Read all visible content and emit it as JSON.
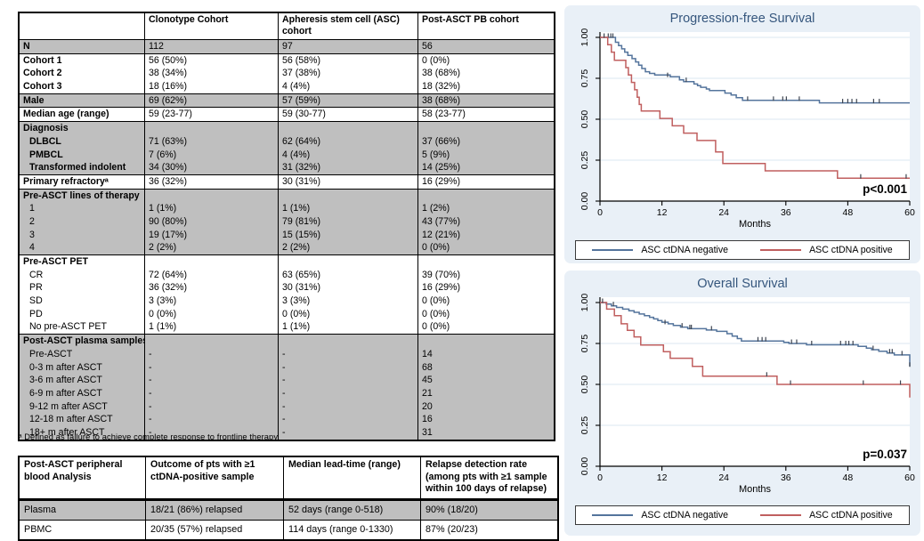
{
  "colors": {
    "table_shade": "#bfbfbf",
    "panel_bg": "#e9f0f7",
    "grid": "#dbe7f1",
    "axis": "#000000",
    "title": "#35567d",
    "censor_tick": "#3d4450",
    "negative": "#54749c",
    "positive": "#c05f5f"
  },
  "tables": {
    "characteristics": {
      "columns": [
        "",
        "Clonotype Cohort",
        "Apheresis stem cell (ASC) cohort",
        "Post-ASCT PB cohort"
      ],
      "blocks": [
        {
          "shaded": true,
          "lines": [
            {
              "label": "N",
              "bold": true,
              "values": [
                "112",
                "97",
                "56"
              ]
            }
          ]
        },
        {
          "shaded": false,
          "lines": [
            {
              "label": "Cohort 1",
              "bold": true,
              "values": [
                "56 (50%)",
                "56 (58%)",
                "0 (0%)"
              ]
            },
            {
              "label": "Cohort 2",
              "bold": true,
              "values": [
                "38 (34%)",
                "37 (38%)",
                "38 (68%)"
              ]
            },
            {
              "label": "Cohort 3",
              "bold": true,
              "values": [
                "18 (16%)",
                "4 (4%)",
                "18 (32%)"
              ]
            }
          ]
        },
        {
          "shaded": true,
          "lines": [
            {
              "label": "Male",
              "bold": true,
              "values": [
                "69 (62%)",
                "57 (59%)",
                "38 (68%)"
              ]
            }
          ]
        },
        {
          "shaded": false,
          "lines": [
            {
              "label": "Median age (range)",
              "bold": true,
              "values": [
                "59 (23-77)",
                "59 (30-77)",
                "58 (23-77)"
              ]
            }
          ]
        },
        {
          "shaded": true,
          "lines": [
            {
              "label": "Diagnosis",
              "bold": true,
              "values": [
                "",
                "",
                ""
              ]
            },
            {
              "label": "DLBCL",
              "bold": true,
              "indent": true,
              "values": [
                "71 (63%)",
                "62 (64%)",
                "37 (66%)"
              ]
            },
            {
              "label": "PMBCL",
              "bold": true,
              "indent": true,
              "values": [
                "7 (6%)",
                "4 (4%)",
                "5 (9%)"
              ]
            },
            {
              "label": "Transformed indolent",
              "bold": true,
              "indent": true,
              "values": [
                "34 (30%)",
                "31 (32%)",
                "14 (25%)"
              ]
            }
          ]
        },
        {
          "shaded": false,
          "lines": [
            {
              "label": "Primary refractoryᵃ",
              "bold": true,
              "values": [
                "36 (32%)",
                "30 (31%)",
                "16 (29%)"
              ]
            }
          ]
        },
        {
          "shaded": true,
          "lines": [
            {
              "label": "Pre-ASCT lines of therapy",
              "bold": true,
              "values": [
                "",
                "",
                ""
              ]
            },
            {
              "label": "1",
              "indent": true,
              "values": [
                "1 (1%)",
                "1 (1%)",
                "1 (2%)"
              ]
            },
            {
              "label": "2",
              "indent": true,
              "values": [
                "90 (80%)",
                "79 (81%)",
                "43 (77%)"
              ]
            },
            {
              "label": "3",
              "indent": true,
              "values": [
                "19 (17%)",
                "15 (15%)",
                "12 (21%)"
              ]
            },
            {
              "label": "4",
              "indent": true,
              "values": [
                "2 (2%)",
                "2 (2%)",
                "0 (0%)"
              ]
            }
          ]
        },
        {
          "shaded": false,
          "lines": [
            {
              "label": "Pre-ASCT PET",
              "bold": true,
              "values": [
                "",
                "",
                ""
              ]
            },
            {
              "label": "CR",
              "indent": true,
              "values": [
                "72 (64%)",
                "63 (65%)",
                "39 (70%)"
              ]
            },
            {
              "label": "PR",
              "indent": true,
              "values": [
                "36 (32%)",
                "30 (31%)",
                "16 (29%)"
              ]
            },
            {
              "label": "SD",
              "indent": true,
              "values": [
                "3 (3%)",
                "3 (3%)",
                "0 (0%)"
              ]
            },
            {
              "label": "PD",
              "indent": true,
              "values": [
                "0 (0%)",
                "0 (0%)",
                "0 (0%)"
              ]
            },
            {
              "label": "No pre-ASCT PET",
              "indent": true,
              "values": [
                "1 (1%)",
                "1 (1%)",
                "0 (0%)"
              ]
            }
          ]
        },
        {
          "shaded": true,
          "lines": [
            {
              "label": "Post-ASCT plasma samples",
              "bold": true,
              "values": [
                "",
                "",
                ""
              ]
            },
            {
              "label": "Pre-ASCT",
              "indent": true,
              "values": [
                "-",
                "-",
                "14"
              ]
            },
            {
              "label": "0-3 m after ASCT",
              "indent": true,
              "values": [
                "-",
                "-",
                "68"
              ]
            },
            {
              "label": "3-6 m after ASCT",
              "indent": true,
              "values": [
                "-",
                "-",
                "45"
              ]
            },
            {
              "label": "6-9 m after ASCT",
              "indent": true,
              "values": [
                "-",
                "-",
                "21"
              ]
            },
            {
              "label": "9-12 m after ASCT",
              "indent": true,
              "values": [
                "-",
                "-",
                "20"
              ]
            },
            {
              "label": "12-18 m after ASCT",
              "indent": true,
              "values": [
                "-",
                "-",
                "16"
              ]
            },
            {
              "label": "18+ m after ASCT",
              "indent": true,
              "values": [
                "-",
                "-",
                "31"
              ]
            }
          ]
        }
      ],
      "footnote": "ᵃ Defined as failure to achieve complete response to frontline therapy."
    },
    "pb_analysis": {
      "columns": [
        "Post-ASCT peripheral blood Analysis",
        "Outcome of pts with ≥1 ctDNA-positive sample",
        "Median lead-time (range)",
        "Relapse detection rate (among pts with ≥1 sample within 100 days of relapse)"
      ],
      "rows": [
        {
          "shaded": true,
          "label": "Plasma",
          "values": [
            "18/21 (86%) relapsed",
            "52 days (range 0-518)",
            "90% (18/20)"
          ]
        },
        {
          "shaded": false,
          "label": "PBMC",
          "values": [
            "20/35 (57%) relapsed",
            "114 days (range 0-1330)",
            "87% (20/23)"
          ]
        }
      ]
    }
  },
  "chart_data": [
    {
      "type": "line",
      "subtype": "kaplan-meier-step",
      "slug": "pfs",
      "title": "Progression-free Survival",
      "xlabel": "Months",
      "ylabel": "",
      "xlim": [
        0,
        60
      ],
      "ylim": [
        0,
        1
      ],
      "x_ticks": [
        0,
        12,
        24,
        36,
        48,
        60
      ],
      "y_ticks": [
        0,
        0.25,
        0.5,
        0.75,
        1
      ],
      "y_tick_labels": [
        "0.00",
        "0.25",
        "0.50",
        "0.75",
        "1.00"
      ],
      "grid": true,
      "legend_position": "bottom",
      "annotation": "p<0.001",
      "series": [
        {
          "name": "ASC ctDNA negative",
          "color": "#54749c",
          "steps": [
            [
              0,
              1
            ],
            [
              3,
              0.97
            ],
            [
              3.6,
              0.95
            ],
            [
              4.2,
              0.93
            ],
            [
              4.8,
              0.91
            ],
            [
              5.4,
              0.89
            ],
            [
              6.2,
              0.87
            ],
            [
              6.9,
              0.85
            ],
            [
              7.5,
              0.83
            ],
            [
              8.1,
              0.81
            ],
            [
              8.8,
              0.79
            ],
            [
              9.6,
              0.78
            ],
            [
              10.6,
              0.77
            ],
            [
              13.6,
              0.76
            ],
            [
              15.4,
              0.74
            ],
            [
              16.2,
              0.73
            ],
            [
              18.2,
              0.715
            ],
            [
              18.9,
              0.705
            ],
            [
              19.5,
              0.695
            ],
            [
              20.6,
              0.685
            ],
            [
              21.2,
              0.675
            ],
            [
              24.2,
              0.66
            ],
            [
              25.4,
              0.648
            ],
            [
              26.4,
              0.632
            ],
            [
              27.6,
              0.615
            ],
            [
              42.5,
              0.6
            ],
            [
              60,
              0.6
            ]
          ],
          "censors": [
            [
              1.6,
              1
            ],
            [
              2.1,
              1
            ],
            [
              2.5,
              1
            ],
            [
              13.1,
              0.76
            ],
            [
              16.7,
              0.73
            ],
            [
              28.6,
              0.615
            ],
            [
              33.6,
              0.615
            ],
            [
              35.4,
              0.615
            ],
            [
              36.1,
              0.615
            ],
            [
              38.6,
              0.615
            ],
            [
              47,
              0.6
            ],
            [
              48,
              0.6
            ],
            [
              48.8,
              0.6
            ],
            [
              49.7,
              0.6
            ],
            [
              53,
              0.6
            ],
            [
              54.1,
              0.6
            ]
          ]
        },
        {
          "name": "ASC ctDNA positive",
          "color": "#c05f5f",
          "steps": [
            [
              0,
              1
            ],
            [
              1.5,
              0.955
            ],
            [
              2.2,
              0.91
            ],
            [
              2.8,
              0.86
            ],
            [
              5,
              0.815
            ],
            [
              5.5,
              0.77
            ],
            [
              6.1,
              0.725
            ],
            [
              6.7,
              0.68
            ],
            [
              7.2,
              0.635
            ],
            [
              7.6,
              0.59
            ],
            [
              8,
              0.55
            ],
            [
              11.6,
              0.505
            ],
            [
              14,
              0.46
            ],
            [
              16.2,
              0.415
            ],
            [
              18.8,
              0.37
            ],
            [
              22.4,
              0.3
            ],
            [
              23.8,
              0.23
            ],
            [
              32,
              0.185
            ],
            [
              46,
              0.14
            ],
            [
              60,
              0.14
            ]
          ],
          "censors": [
            [
              0.8,
              1
            ],
            [
              50.5,
              0.14
            ],
            [
              59.3,
              0.14
            ]
          ]
        }
      ]
    },
    {
      "type": "line",
      "subtype": "kaplan-meier-step",
      "slug": "os",
      "title": "Overall Survival",
      "xlabel": "Months",
      "ylabel": "",
      "xlim": [
        0,
        60
      ],
      "ylim": [
        0,
        1
      ],
      "x_ticks": [
        0,
        12,
        24,
        36,
        48,
        60
      ],
      "y_ticks": [
        0,
        0.25,
        0.5,
        0.75,
        1
      ],
      "y_tick_labels": [
        "0.00",
        "0.25",
        "0.50",
        "0.75",
        "1.00"
      ],
      "grid": true,
      "legend_position": "bottom",
      "annotation": "p=0.037",
      "series": [
        {
          "name": "ASC ctDNA negative",
          "color": "#54749c",
          "steps": [
            [
              0,
              1
            ],
            [
              1.2,
              0.99
            ],
            [
              2.2,
              0.98
            ],
            [
              3.2,
              0.97
            ],
            [
              4.4,
              0.96
            ],
            [
              5.6,
              0.95
            ],
            [
              6.6,
              0.94
            ],
            [
              7.6,
              0.93
            ],
            [
              8.6,
              0.92
            ],
            [
              9.6,
              0.91
            ],
            [
              10.4,
              0.9
            ],
            [
              11.2,
              0.89
            ],
            [
              12,
              0.88
            ],
            [
              13.2,
              0.87
            ],
            [
              14.2,
              0.86
            ],
            [
              15.6,
              0.85
            ],
            [
              17,
              0.84
            ],
            [
              20.6,
              0.832
            ],
            [
              22.6,
              0.824
            ],
            [
              24.6,
              0.81
            ],
            [
              25.6,
              0.795
            ],
            [
              26.6,
              0.78
            ],
            [
              27.4,
              0.765
            ],
            [
              35.6,
              0.757
            ],
            [
              36.6,
              0.75
            ],
            [
              40,
              0.742
            ],
            [
              50,
              0.732
            ],
            [
              51.6,
              0.722
            ],
            [
              52.6,
              0.712
            ],
            [
              54,
              0.702
            ],
            [
              55.6,
              0.692
            ],
            [
              57,
              0.68
            ],
            [
              60,
              0.61
            ]
          ],
          "censors": [
            [
              2.6,
              0.98
            ],
            [
              12.6,
              0.87
            ],
            [
              15.9,
              0.85
            ],
            [
              17.4,
              0.84
            ],
            [
              17.7,
              0.84
            ],
            [
              21.6,
              0.832
            ],
            [
              30.6,
              0.765
            ],
            [
              31.4,
              0.765
            ],
            [
              32.1,
              0.765
            ],
            [
              37.1,
              0.75
            ],
            [
              38.1,
              0.75
            ],
            [
              41,
              0.742
            ],
            [
              46.6,
              0.742
            ],
            [
              47.6,
              0.742
            ],
            [
              48.2,
              0.742
            ],
            [
              49,
              0.742
            ],
            [
              52.9,
              0.712
            ],
            [
              56.1,
              0.692
            ],
            [
              56.6,
              0.692
            ],
            [
              58.5,
              0.68
            ],
            [
              60,
              0.61
            ]
          ]
        },
        {
          "name": "ASC ctDNA positive",
          "color": "#c05f5f",
          "steps": [
            [
              0,
              1
            ],
            [
              1.3,
              0.96
            ],
            [
              2.8,
              0.92
            ],
            [
              4.1,
              0.87
            ],
            [
              5.3,
              0.83
            ],
            [
              6.6,
              0.79
            ],
            [
              7.9,
              0.74
            ],
            [
              12.3,
              0.7
            ],
            [
              13.6,
              0.66
            ],
            [
              17.9,
              0.61
            ],
            [
              19.9,
              0.55
            ],
            [
              34.3,
              0.5
            ],
            [
              60,
              0.42
            ]
          ],
          "censors": [
            [
              0.5,
              1
            ],
            [
              32.3,
              0.55
            ],
            [
              36.9,
              0.5
            ],
            [
              51,
              0.5
            ],
            [
              58.2,
              0.5
            ]
          ]
        }
      ]
    }
  ]
}
